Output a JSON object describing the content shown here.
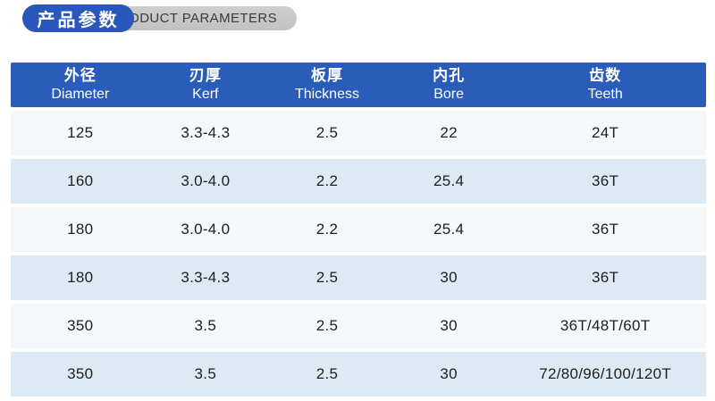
{
  "banner": {
    "title_zh": "产品参数",
    "title_en": "PRODUCT PARAMETERS"
  },
  "colors": {
    "primary_blue": "#2a5cb9",
    "title_pill_blue": "#2a57bb",
    "pill_gray": "#c6c6c6",
    "row_light": "#f4f8fb",
    "row_alt": "#ddeaf4",
    "header_text": "#ffffff",
    "body_text": "#1e1e1e"
  },
  "table": {
    "columns": [
      {
        "zh": "外径",
        "en": "Diameter"
      },
      {
        "zh": "刃厚",
        "en": "Kerf"
      },
      {
        "zh": "板厚",
        "en": "Thickness"
      },
      {
        "zh": "内孔",
        "en": "Bore"
      },
      {
        "zh": "齿数",
        "en": "Teeth"
      }
    ],
    "rows": [
      [
        "125",
        "3.3-4.3",
        "2.5",
        "22",
        "24T"
      ],
      [
        "160",
        "3.0-4.0",
        "2.2",
        "25.4",
        "36T"
      ],
      [
        "180",
        "3.0-4.0",
        "2.2",
        "25.4",
        "36T"
      ],
      [
        "180",
        "3.3-4.3",
        "2.5",
        "30",
        "36T"
      ],
      [
        "350",
        "3.5",
        "2.5",
        "30",
        "36T/48T/60T"
      ],
      [
        "350",
        "3.5",
        "2.5",
        "30",
        "72/80/96/100/120T"
      ]
    ]
  }
}
